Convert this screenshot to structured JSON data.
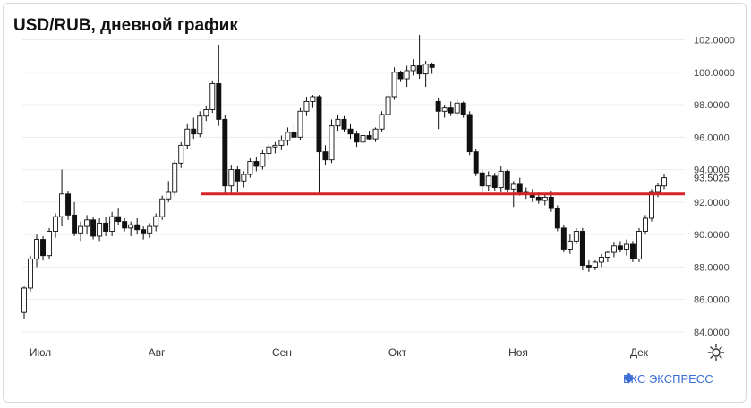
{
  "title": "USD/RUB, дневной график",
  "brand": "БКС ЭКСПРЕСС",
  "chart_data": {
    "type": "candlestick",
    "title": "USD/RUB, дневной график",
    "x_ticks": [
      "Июл",
      "Авг",
      "Сен",
      "Окт",
      "Ноя",
      "Дек"
    ],
    "y_ticks": [
      "102.0000",
      "100.0000",
      "98.0000",
      "96.0000",
      "94.0000",
      "92.0000",
      "90.0000",
      "88.0000",
      "86.0000",
      "84.0000"
    ],
    "ylim": [
      83.5,
      102.8
    ],
    "current_price_label": "93.5025",
    "support_level": 92.5,
    "colors": {
      "up": "#ffffff",
      "down": "#111111",
      "level": "#d9232a",
      "brand": "#3d6fd6"
    },
    "candles": [
      [
        85.2,
        86.8,
        84.8,
        86.7
      ],
      [
        86.7,
        88.7,
        86.5,
        88.5
      ],
      [
        88.5,
        90.0,
        88.0,
        89.7
      ],
      [
        89.7,
        89.9,
        88.4,
        88.7
      ],
      [
        88.7,
        90.4,
        88.5,
        90.2
      ],
      [
        90.2,
        91.3,
        89.8,
        91.1
      ],
      [
        91.1,
        94.0,
        90.5,
        92.5
      ],
      [
        92.5,
        92.7,
        90.9,
        91.2
      ],
      [
        91.2,
        92.0,
        89.9,
        90.1
      ],
      [
        90.1,
        90.8,
        89.6,
        90.5
      ],
      [
        90.5,
        91.2,
        90.0,
        90.9
      ],
      [
        90.9,
        91.1,
        89.7,
        89.9
      ],
      [
        89.9,
        91.0,
        89.6,
        90.7
      ],
      [
        90.7,
        91.1,
        89.9,
        90.2
      ],
      [
        90.2,
        91.4,
        89.9,
        91.1
      ],
      [
        91.1,
        91.6,
        90.6,
        90.8
      ],
      [
        90.8,
        91.0,
        90.2,
        90.4
      ],
      [
        90.4,
        90.8,
        89.9,
        90.6
      ],
      [
        90.6,
        91.0,
        90.0,
        90.3
      ],
      [
        90.3,
        90.5,
        89.7,
        90.1
      ],
      [
        90.1,
        90.7,
        89.8,
        90.5
      ],
      [
        90.5,
        91.3,
        90.2,
        91.1
      ],
      [
        91.1,
        92.4,
        90.9,
        92.2
      ],
      [
        92.2,
        93.3,
        92.0,
        92.6
      ],
      [
        92.6,
        94.6,
        92.4,
        94.4
      ],
      [
        94.4,
        95.7,
        94.1,
        95.5
      ],
      [
        95.5,
        96.8,
        95.3,
        96.5
      ],
      [
        96.5,
        97.2,
        95.9,
        96.2
      ],
      [
        96.2,
        97.6,
        96.0,
        97.3
      ],
      [
        97.3,
        97.9,
        97.0,
        97.7
      ],
      [
        97.7,
        99.5,
        97.5,
        99.3
      ],
      [
        99.3,
        101.7,
        96.7,
        97.1
      ],
      [
        97.1,
        97.4,
        92.5,
        93.0
      ],
      [
        93.0,
        94.3,
        92.5,
        94.0
      ],
      [
        94.0,
        94.2,
        92.6,
        93.3
      ],
      [
        93.3,
        93.9,
        92.9,
        93.7
      ],
      [
        93.7,
        94.7,
        93.5,
        94.5
      ],
      [
        94.5,
        94.8,
        93.9,
        94.2
      ],
      [
        94.2,
        95.2,
        94.0,
        95.0
      ],
      [
        95.0,
        95.6,
        94.6,
        95.4
      ],
      [
        95.4,
        95.7,
        95.0,
        95.5
      ],
      [
        95.5,
        96.1,
        95.2,
        95.8
      ],
      [
        95.8,
        96.6,
        95.5,
        96.3
      ],
      [
        96.3,
        96.8,
        95.9,
        96.0
      ],
      [
        96.0,
        97.8,
        95.8,
        97.6
      ],
      [
        97.6,
        98.5,
        97.3,
        98.2
      ],
      [
        98.2,
        98.6,
        97.8,
        98.5
      ],
      [
        98.5,
        98.6,
        92.5,
        95.1
      ],
      [
        95.1,
        95.5,
        94.3,
        94.6
      ],
      [
        94.6,
        97.1,
        94.4,
        96.7
      ],
      [
        96.7,
        97.4,
        96.4,
        97.1
      ],
      [
        97.1,
        97.3,
        96.3,
        96.5
      ],
      [
        96.5,
        96.8,
        95.9,
        96.2
      ],
      [
        96.2,
        96.4,
        95.4,
        95.7
      ],
      [
        95.7,
        96.3,
        95.5,
        96.1
      ],
      [
        96.1,
        96.4,
        95.8,
        95.9
      ],
      [
        95.9,
        96.6,
        95.7,
        96.5
      ],
      [
        96.5,
        97.6,
        96.3,
        97.4
      ],
      [
        97.4,
        98.7,
        97.2,
        98.5
      ],
      [
        98.5,
        100.3,
        98.3,
        100.0
      ],
      [
        100.0,
        100.1,
        99.4,
        99.6
      ],
      [
        99.6,
        100.4,
        99.1,
        100.1
      ],
      [
        100.1,
        100.8,
        99.8,
        100.4
      ],
      [
        100.4,
        102.3,
        99.6,
        99.9
      ],
      [
        99.9,
        100.7,
        99.1,
        100.5
      ],
      [
        100.5,
        100.6,
        99.9,
        100.3
      ],
      [
        98.2,
        98.4,
        96.5,
        97.6
      ],
      [
        97.6,
        98.0,
        97.2,
        97.8
      ],
      [
        97.8,
        98.2,
        97.3,
        97.5
      ],
      [
        97.5,
        98.3,
        97.3,
        98.1
      ],
      [
        98.1,
        98.2,
        97.2,
        97.4
      ],
      [
        97.4,
        97.6,
        94.9,
        95.1
      ],
      [
        95.1,
        95.3,
        93.6,
        93.8
      ],
      [
        93.8,
        94.0,
        92.6,
        93.0
      ],
      [
        93.0,
        93.9,
        92.7,
        93.6
      ],
      [
        93.6,
        93.8,
        92.7,
        92.9
      ],
      [
        92.9,
        94.2,
        92.6,
        93.9
      ],
      [
        93.9,
        94.0,
        92.6,
        92.8
      ],
      [
        92.8,
        93.3,
        91.7,
        93.1
      ],
      [
        93.1,
        93.5,
        92.4,
        92.6
      ],
      [
        92.6,
        92.9,
        92.2,
        92.5
      ],
      [
        92.5,
        92.8,
        92.0,
        92.3
      ],
      [
        92.3,
        92.6,
        91.9,
        92.1
      ],
      [
        92.1,
        92.5,
        91.8,
        92.3
      ],
      [
        92.3,
        92.7,
        91.4,
        91.6
      ],
      [
        91.6,
        91.8,
        90.2,
        90.4
      ],
      [
        90.4,
        90.6,
        88.9,
        89.1
      ],
      [
        89.1,
        90.0,
        88.8,
        89.6
      ],
      [
        89.6,
        90.4,
        89.4,
        90.2
      ],
      [
        90.2,
        90.4,
        87.8,
        88.1
      ],
      [
        88.1,
        88.4,
        87.7,
        88.0
      ],
      [
        88.0,
        88.4,
        87.8,
        88.3
      ],
      [
        88.3,
        88.8,
        88.0,
        88.6
      ],
      [
        88.6,
        89.0,
        88.3,
        88.9
      ],
      [
        88.9,
        89.5,
        88.6,
        89.3
      ],
      [
        89.3,
        89.6,
        88.9,
        89.1
      ],
      [
        89.1,
        89.7,
        88.7,
        89.4
      ],
      [
        89.4,
        89.6,
        88.3,
        88.5
      ],
      [
        88.5,
        90.4,
        88.3,
        90.2
      ],
      [
        90.2,
        91.2,
        90.0,
        91.0
      ],
      [
        91.0,
        92.8,
        90.8,
        92.6
      ],
      [
        92.6,
        93.2,
        92.3,
        93.0
      ],
      [
        93.0,
        93.7,
        92.8,
        93.5
      ]
    ]
  }
}
